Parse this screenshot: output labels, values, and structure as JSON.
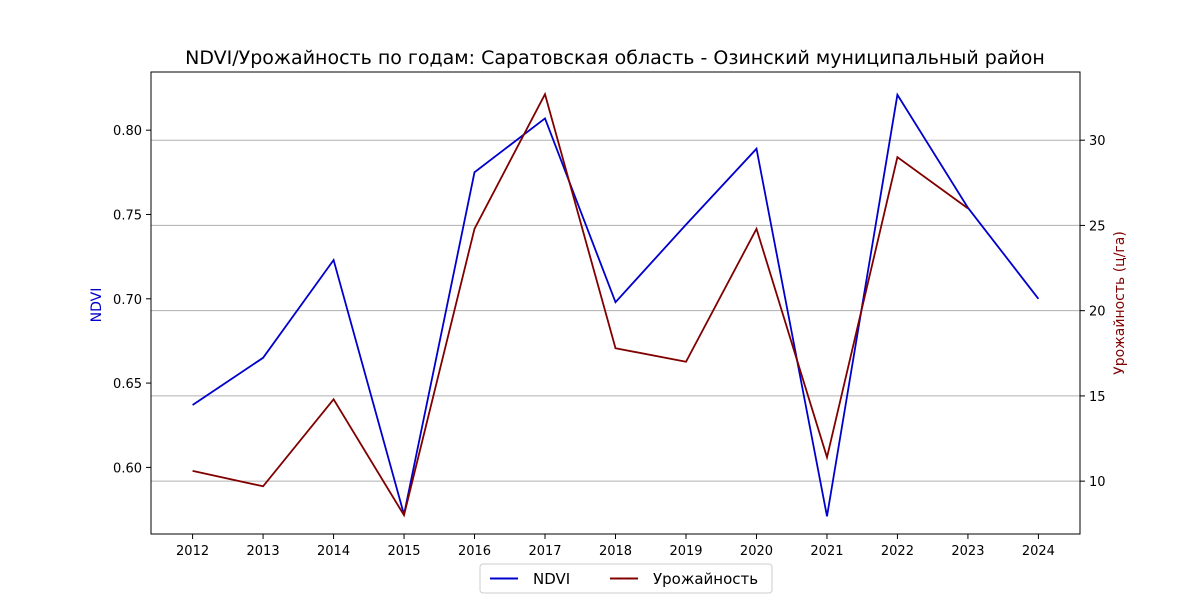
{
  "chart_data": {
    "type": "line",
    "title": "NDVI/Урожайность по годам: Саратовская область - Озинский муниципальный район",
    "xlabel": "",
    "ylabel_left": "NDVI",
    "ylabel_right": "Урожайность (ц/га)",
    "x": [
      2012,
      2013,
      2014,
      2015,
      2016,
      2017,
      2018,
      2019,
      2020,
      2021,
      2022,
      2023,
      2024
    ],
    "x_tick_labels": [
      "2012",
      "2013",
      "2014",
      "2015",
      "2016",
      "2017",
      "2018",
      "2019",
      "2020",
      "2021",
      "2022",
      "2023",
      "2024"
    ],
    "y_left_ticks": [
      "0.60",
      "0.65",
      "0.70",
      "0.75",
      "0.80"
    ],
    "y_left_tick_values": [
      0.6,
      0.65,
      0.7,
      0.75,
      0.8
    ],
    "y_right_ticks": [
      "10",
      "15",
      "20",
      "25",
      "30"
    ],
    "y_right_tick_values": [
      10,
      15,
      20,
      25,
      30
    ],
    "ylim_left": [
      0.5605,
      0.8345
    ],
    "ylim_right": [
      6.9,
      34.0
    ],
    "grid": "horizontal lines at right-axis ticks",
    "legend_position": "bottom-center",
    "series": [
      {
        "name": "NDVI",
        "axis": "left",
        "color": "#0000cc",
        "values": [
          0.637,
          0.665,
          0.723,
          0.572,
          0.775,
          0.807,
          0.698,
          0.744,
          0.789,
          0.571,
          0.821,
          0.754,
          0.7
        ]
      },
      {
        "name": "Урожайность",
        "axis": "right",
        "color": "#800000",
        "values": [
          10.6,
          9.7,
          14.8,
          8.0,
          24.8,
          32.7,
          17.8,
          17.0,
          24.8,
          11.4,
          29.0,
          26.0,
          null
        ]
      }
    ]
  }
}
